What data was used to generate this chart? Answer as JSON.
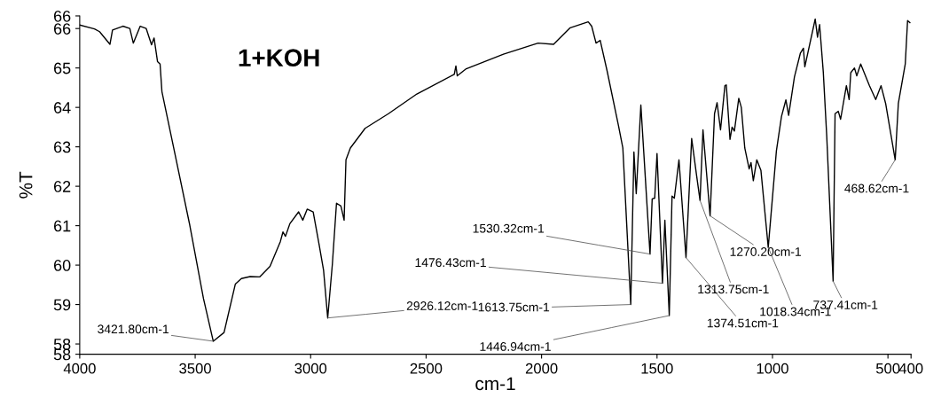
{
  "chart_data": {
    "type": "line",
    "xlabel": "cm-1",
    "ylabel": "%T",
    "x": [
      4000,
      3936,
      3914,
      3869,
      3858,
      3813,
      3783,
      3768,
      3738,
      3712,
      3689,
      3678,
      3663,
      3652,
      3644,
      3588,
      3524,
      3464,
      3421.8,
      3375,
      3326,
      3300,
      3262,
      3221,
      3176,
      3131,
      3120,
      3109,
      3090,
      3052,
      3034,
      3015,
      2989,
      2963,
      2944,
      2926.12,
      2906,
      2888,
      2869,
      2855,
      2847,
      2828,
      2764,
      2663,
      2540,
      2378,
      2371,
      2365,
      2326,
      2165,
      2015,
      1948,
      1876,
      1798,
      1783,
      1764,
      1746,
      1716,
      1667,
      1648,
      1613.75,
      1600,
      1590,
      1570,
      1530.32,
      1521,
      1510,
      1500,
      1476.43,
      1466,
      1446.94,
      1435,
      1425,
      1405,
      1374.51,
      1350,
      1330,
      1313.75,
      1301,
      1270.2,
      1251,
      1240,
      1225,
      1206,
      1200,
      1184,
      1175,
      1165,
      1146,
      1135,
      1120,
      1101,
      1093,
      1083,
      1068,
      1050,
      1018.34,
      983,
      961,
      942,
      930,
      905,
      879,
      866,
      860,
      815,
      805,
      796,
      780,
      765,
      737.41,
      729,
      715,
      705,
      680,
      668,
      661,
      645,
      635,
      618,
      580,
      553,
      530,
      510,
      468.62,
      455,
      425,
      415,
      405
    ],
    "values": [
      66.09,
      65.99,
      65.92,
      65.6,
      65.96,
      66.06,
      66.0,
      65.63,
      66.06,
      66.0,
      65.59,
      65.76,
      65.16,
      65.1,
      64.4,
      62.83,
      61.03,
      59.15,
      58.07,
      58.29,
      59.52,
      59.66,
      59.71,
      59.7,
      59.97,
      60.6,
      60.84,
      60.73,
      61.05,
      61.35,
      61.14,
      61.42,
      61.35,
      60.51,
      59.87,
      58.66,
      60.02,
      61.57,
      61.5,
      61.14,
      62.67,
      62.97,
      63.47,
      63.84,
      64.34,
      64.84,
      65.05,
      64.8,
      64.98,
      65.35,
      65.63,
      65.6,
      66.02,
      66.17,
      66.06,
      65.63,
      65.7,
      64.92,
      63.54,
      62.97,
      59.0,
      62.87,
      61.81,
      64.06,
      60.28,
      61.68,
      61.7,
      62.83,
      59.54,
      61.14,
      58.72,
      61.75,
      61.7,
      62.67,
      60.19,
      63.21,
      62.33,
      61.64,
      63.43,
      61.25,
      63.84,
      64.12,
      63.43,
      64.55,
      64.57,
      63.19,
      63.5,
      63.4,
      64.23,
      64.0,
      62.97,
      62.44,
      62.6,
      62.14,
      62.67,
      62.4,
      60.45,
      62.9,
      63.77,
      64.19,
      63.8,
      64.77,
      65.38,
      65.5,
      65.03,
      66.24,
      65.78,
      66.1,
      64.9,
      63.26,
      59.59,
      63.84,
      63.9,
      63.7,
      64.55,
      64.2,
      64.88,
      65.0,
      64.8,
      65.1,
      64.55,
      64.2,
      64.55,
      64.1,
      62.67,
      64.1,
      65.1,
      66.2,
      66.15
    ],
    "color": "#000000",
    "xlim": [
      4000,
      400
    ],
    "xticks": [
      4000,
      3500,
      3000,
      2500,
      2000,
      1500,
      1000,
      500,
      400
    ],
    "ylim": [
      57.74,
      66.32
    ],
    "yticks": [
      {
        "value": 57.74,
        "label": "58"
      },
      58,
      59,
      60,
      61,
      62,
      63,
      64,
      65,
      66,
      {
        "value": 66.32,
        "label": "66"
      }
    ],
    "grid": false,
    "annotations": [
      "1+KOH",
      {
        "text": "3421.80cm-1",
        "x": 3421.8,
        "y": 58.07
      },
      {
        "text": "2926.12cm-1",
        "x": 2926.12,
        "y": 58.66
      },
      {
        "text": "1613.75cm-1",
        "x": 1613.75,
        "y": 59.0
      },
      {
        "text": "1530.32cm-1",
        "x": 1530.32,
        "y": 60.28
      },
      {
        "text": "1476.43cm-1",
        "x": 1476.43,
        "y": 59.54
      },
      {
        "text": "1446.94cm-1",
        "x": 1446.94,
        "y": 58.72
      },
      {
        "text": "1374.51cm-1",
        "x": 1374.51,
        "y": 60.19
      },
      {
        "text": "1313.75cm-1",
        "x": 1313.75,
        "y": 61.64
      },
      {
        "text": "1270.20cm-1",
        "x": 1270.2,
        "y": 61.25
      },
      {
        "text": "1018.34cm-1",
        "x": 1018.34,
        "y": 60.45
      },
      {
        "text": "737.41cm-1",
        "x": 737.41,
        "y": 59.59
      },
      {
        "text": "468.62cm-1",
        "x": 468.62,
        "y": 62.67
      }
    ]
  }
}
